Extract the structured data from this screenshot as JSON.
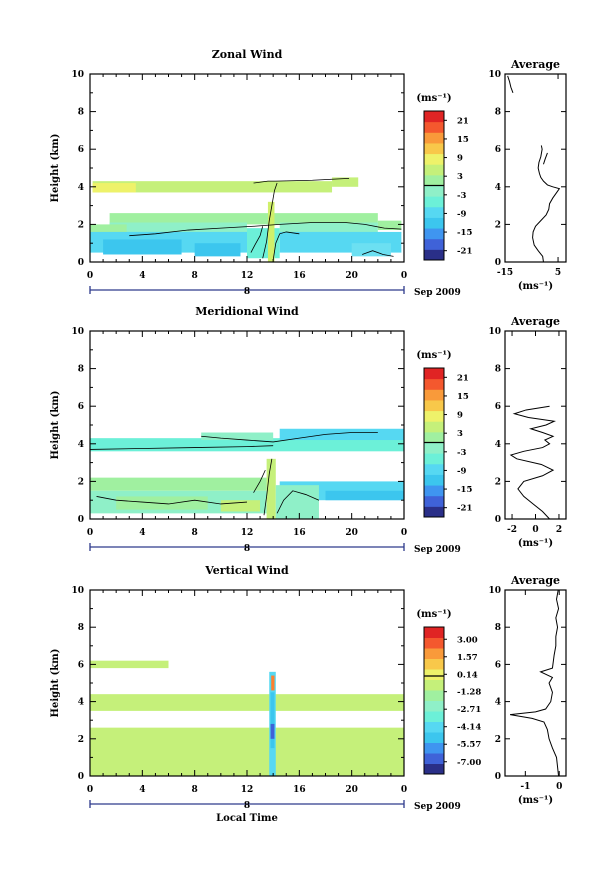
{
  "chart_data": [
    {
      "type": "heatmap",
      "title": "Zonal Wind",
      "ylabel": "Height (km)",
      "xlim": [
        0,
        24
      ],
      "ylim": [
        0,
        10
      ],
      "x_ticks": [
        "0",
        "4",
        "8",
        "12",
        "16",
        "20",
        "0"
      ],
      "y_ticks": [
        "0",
        "2",
        "4",
        "6",
        "8",
        "10"
      ],
      "day_label": "8",
      "date_label": "Sep 2009",
      "colorbar": {
        "unit": "(ms⁻¹)",
        "range": [
          -24,
          24
        ],
        "ticks": [
          "21",
          "15",
          "9",
          "3",
          "-3",
          "-9",
          "-15",
          "-21"
        ],
        "tick_values": [
          21,
          15,
          9,
          3,
          -3,
          -9,
          -15,
          -21
        ]
      },
      "average": {
        "title": "Average",
        "xlabel": "(ms⁻¹)",
        "xlim": [
          -15,
          8
        ],
        "x_ticks": [
          "-15",
          "5"
        ],
        "x_tick_values": [
          -15,
          5
        ],
        "y_ticks": [
          "0",
          "2",
          "4",
          "6",
          "8",
          "10"
        ],
        "profile_segments": [
          [
            [
              -0.5,
              0.0
            ],
            [
              -0.8,
              0.3
            ],
            [
              -2.5,
              0.6
            ],
            [
              -4.0,
              0.9
            ],
            [
              -4.6,
              1.3
            ],
            [
              -4.4,
              1.6
            ],
            [
              -3.5,
              1.9
            ],
            [
              -1.5,
              2.2
            ],
            [
              0.5,
              2.5
            ],
            [
              1.5,
              2.8
            ],
            [
              1.8,
              3.1
            ],
            [
              3.0,
              3.4
            ],
            [
              4.5,
              3.7
            ],
            [
              5.5,
              3.9
            ],
            [
              3.0,
              4.0
            ],
            [
              1.0,
              4.1
            ],
            [
              -0.5,
              4.3
            ],
            [
              -1.5,
              4.5
            ],
            [
              -2.0,
              4.7
            ],
            [
              -2.5,
              5.0
            ],
            [
              -2.2,
              5.3
            ],
            [
              -1.5,
              5.6
            ],
            [
              -1.0,
              6.0
            ],
            [
              -1.3,
              6.2
            ]
          ],
          [
            [
              -0.5,
              5.2
            ],
            [
              0.2,
              5.5
            ],
            [
              1.0,
              5.8
            ]
          ],
          [
            [
              -12.0,
              9.0
            ],
            [
              -12.8,
              9.3
            ],
            [
              -13.3,
              9.6
            ],
            [
              -14.0,
              9.9
            ]
          ]
        ]
      },
      "bands": [
        {
          "x0": 0.2,
          "x1": 18.5,
          "y0": 3.7,
          "y1": 4.3,
          "color": "#c5f07a"
        },
        {
          "x0": 0.2,
          "x1": 3.5,
          "y0": 3.7,
          "y1": 4.2,
          "color": "#eef26a"
        },
        {
          "x0": 18.5,
          "x1": 20.5,
          "y0": 4.0,
          "y1": 4.5,
          "color": "#c5f07a"
        },
        {
          "x0": 1.5,
          "x1": 22.0,
          "y0": 2.0,
          "y1": 2.6,
          "color": "#a0f0a0"
        },
        {
          "x0": 22.0,
          "x1": 23.8,
          "y0": 1.7,
          "y1": 2.2,
          "color": "#a0f0a0"
        },
        {
          "x0": 1.5,
          "x1": 12.0,
          "y0": 1.5,
          "y1": 2.1,
          "color": "#8ff0c8"
        },
        {
          "x0": 14.5,
          "x1": 22.0,
          "y0": 1.5,
          "y1": 2.1,
          "color": "#8ff0c8"
        },
        {
          "x0": 0.0,
          "x1": 2.8,
          "y0": 1.2,
          "y1": 2.0,
          "color": "#a0f0a0"
        },
        {
          "x0": 0.0,
          "x1": 12.3,
          "y0": 0.5,
          "y1": 1.6,
          "color": "#56d8f2"
        },
        {
          "x0": 14.5,
          "x1": 23.8,
          "y0": 0.5,
          "y1": 1.6,
          "color": "#56d8f2"
        },
        {
          "x0": 1.0,
          "x1": 7.0,
          "y0": 0.4,
          "y1": 1.2,
          "color": "#3cc6ee"
        },
        {
          "x0": 8.0,
          "x1": 11.5,
          "y0": 0.3,
          "y1": 1.0,
          "color": "#3cc6ee"
        },
        {
          "x0": 12.0,
          "x1": 14.5,
          "y0": 0.2,
          "y1": 1.8,
          "color": "#6cf0d8"
        },
        {
          "x0": 20.0,
          "x1": 23.0,
          "y0": 0.3,
          "y1": 1.0,
          "color": "#6ce0f2"
        },
        {
          "x0": 13.6,
          "x1": 14.1,
          "y0": 0.0,
          "y1": 3.2,
          "color": "#d0f06a"
        }
      ],
      "zero_contours": [
        [
          [
            12.5,
            4.2
          ],
          [
            13.6,
            4.3
          ],
          [
            14.2,
            4.3
          ],
          [
            17.0,
            4.35
          ],
          [
            19.8,
            4.45
          ]
        ],
        [
          [
            3.0,
            1.4
          ],
          [
            5.0,
            1.5
          ],
          [
            7.5,
            1.7
          ],
          [
            10.0,
            1.8
          ],
          [
            12.5,
            1.9
          ],
          [
            14.5,
            2.0
          ],
          [
            17.0,
            2.1
          ],
          [
            19.5,
            2.1
          ],
          [
            21.0,
            2.0
          ],
          [
            22.5,
            1.8
          ],
          [
            23.8,
            1.75
          ]
        ],
        [
          [
            13.2,
            0.2
          ],
          [
            13.5,
            1.1
          ],
          [
            13.7,
            2.2
          ],
          [
            13.9,
            3.0
          ],
          [
            14.1,
            3.8
          ],
          [
            14.3,
            4.2
          ]
        ],
        [
          [
            14.0,
            0.1
          ],
          [
            14.2,
            1.0
          ],
          [
            14.5,
            1.5
          ],
          [
            15.0,
            1.6
          ],
          [
            16.0,
            1.5
          ]
        ],
        [
          [
            12.3,
            0.5
          ],
          [
            12.6,
            0.9
          ],
          [
            13.0,
            1.4
          ],
          [
            13.2,
            1.9
          ]
        ],
        [
          [
            20.8,
            0.4
          ],
          [
            21.6,
            0.6
          ],
          [
            22.4,
            0.4
          ],
          [
            23.2,
            0.3
          ]
        ]
      ]
    },
    {
      "type": "heatmap",
      "title": "Meridional Wind",
      "ylabel": "Height (km)",
      "xlim": [
        0,
        24
      ],
      "ylim": [
        0,
        10
      ],
      "x_ticks": [
        "0",
        "4",
        "8",
        "12",
        "16",
        "20",
        "0"
      ],
      "y_ticks": [
        "0",
        "2",
        "4",
        "6",
        "8",
        "10"
      ],
      "day_label": "8",
      "date_label": "Sep 2009",
      "colorbar": {
        "unit": "(ms⁻¹)",
        "range": [
          -24,
          24
        ],
        "ticks": [
          "21",
          "15",
          "9",
          "3",
          "-3",
          "-9",
          "-15",
          "-21"
        ],
        "tick_values": [
          21,
          15,
          9,
          3,
          -3,
          -9,
          -15,
          -21
        ]
      },
      "average": {
        "title": "Average",
        "xlabel": "(ms⁻¹)",
        "xlim": [
          -2.6,
          2.6
        ],
        "x_ticks": [
          "-2",
          "0",
          "2"
        ],
        "x_tick_values": [
          -2,
          0,
          2
        ],
        "y_ticks": [
          "0",
          "2",
          "4",
          "6",
          "8",
          "10"
        ],
        "profile_segments": [
          [
            [
              1.2,
              0.0
            ],
            [
              0.6,
              0.4
            ],
            [
              -0.2,
              0.8
            ],
            [
              -1.0,
              1.2
            ],
            [
              -1.5,
              1.6
            ],
            [
              -1.0,
              2.0
            ],
            [
              0.6,
              2.3
            ],
            [
              1.5,
              2.6
            ],
            [
              0.5,
              2.9
            ],
            [
              -1.6,
              3.2
            ],
            [
              -2.1,
              3.4
            ],
            [
              -1.0,
              3.6
            ],
            [
              0.6,
              3.8
            ],
            [
              1.2,
              4.0
            ],
            [
              0.8,
              4.2
            ],
            [
              1.5,
              4.4
            ],
            [
              0.6,
              4.6
            ],
            [
              -0.4,
              4.8
            ],
            [
              0.9,
              5.0
            ],
            [
              1.6,
              5.2
            ],
            [
              -0.6,
              5.4
            ],
            [
              -1.8,
              5.6
            ],
            [
              -0.8,
              5.8
            ],
            [
              1.2,
              6.0
            ]
          ]
        ]
      },
      "bands": [
        {
          "x0": 0.0,
          "x1": 24.0,
          "y0": 3.6,
          "y1": 4.3,
          "color": "#6cf0d8"
        },
        {
          "x0": 14.5,
          "x1": 24.0,
          "y0": 4.2,
          "y1": 4.8,
          "color": "#56d8f2"
        },
        {
          "x0": 8.5,
          "x1": 14.0,
          "y0": 4.2,
          "y1": 4.6,
          "color": "#8ff0c8"
        },
        {
          "x0": 0.0,
          "x1": 13.5,
          "y0": 1.5,
          "y1": 2.2,
          "color": "#a0f0a0"
        },
        {
          "x0": 14.5,
          "x1": 24.0,
          "y0": 1.0,
          "y1": 2.0,
          "color": "#56d8f2"
        },
        {
          "x0": 18.0,
          "x1": 24.0,
          "y0": 1.0,
          "y1": 1.5,
          "color": "#3cc6ee"
        },
        {
          "x0": 0.0,
          "x1": 13.5,
          "y0": 0.3,
          "y1": 1.5,
          "color": "#8ff0c8"
        },
        {
          "x0": 2.0,
          "x1": 9.0,
          "y0": 0.5,
          "y1": 1.2,
          "color": "#a0f0a0"
        },
        {
          "x0": 10.0,
          "x1": 13.0,
          "y0": 0.4,
          "y1": 1.0,
          "color": "#c5f07a"
        },
        {
          "x0": 13.5,
          "x1": 14.2,
          "y0": 0.0,
          "y1": 3.2,
          "color": "#c5f07a"
        },
        {
          "x0": 14.2,
          "x1": 17.5,
          "y0": 0.0,
          "y1": 1.8,
          "color": "#8ff0c8"
        }
      ],
      "zero_contours": [
        [
          [
            0.0,
            3.7
          ],
          [
            4.0,
            3.75
          ],
          [
            8.0,
            3.8
          ],
          [
            12.0,
            3.85
          ],
          [
            14.0,
            3.9
          ]
        ],
        [
          [
            8.5,
            4.4
          ],
          [
            10.0,
            4.3
          ],
          [
            12.0,
            4.2
          ],
          [
            14.0,
            4.1
          ],
          [
            16.0,
            4.3
          ],
          [
            18.0,
            4.5
          ],
          [
            20.0,
            4.6
          ],
          [
            22.0,
            4.6
          ]
        ],
        [
          [
            0.5,
            1.2
          ],
          [
            2.0,
            1.0
          ],
          [
            4.0,
            0.9
          ],
          [
            6.0,
            0.8
          ],
          [
            8.0,
            1.0
          ],
          [
            10.0,
            0.8
          ],
          [
            12.0,
            0.9
          ]
        ],
        [
          [
            13.3,
            0.2
          ],
          [
            13.5,
            1.2
          ],
          [
            13.7,
            2.4
          ],
          [
            13.9,
            3.2
          ]
        ],
        [
          [
            14.3,
            0.3
          ],
          [
            14.8,
            1.0
          ],
          [
            15.5,
            1.5
          ],
          [
            16.5,
            1.3
          ],
          [
            17.5,
            1.0
          ]
        ],
        [
          [
            12.5,
            1.4
          ],
          [
            13.0,
            2.0
          ],
          [
            13.4,
            2.6
          ]
        ]
      ]
    },
    {
      "type": "heatmap",
      "title": "Vertical Wind",
      "xlabel": "Local Time",
      "ylabel": "Height (km)",
      "xlim": [
        0,
        24
      ],
      "ylim": [
        0,
        10
      ],
      "x_ticks": [
        "0",
        "4",
        "8",
        "12",
        "16",
        "20",
        "0"
      ],
      "y_ticks": [
        "0",
        "2",
        "4",
        "6",
        "8",
        "10"
      ],
      "day_label": "8",
      "date_label": "Sep 2009",
      "colorbar": {
        "unit": "(ms⁻¹)",
        "range": [
          -8,
          4
        ],
        "ticks": [
          "3.00",
          "1.57",
          "0.14",
          "-1.28",
          "-2.71",
          "-4.14",
          "-5.57",
          "-7.00"
        ],
        "tick_values": [
          3.0,
          1.57,
          0.14,
          -1.28,
          -2.71,
          -4.14,
          -5.57,
          -7.0
        ]
      },
      "average": {
        "title": "Average",
        "xlabel": "(ms⁻¹)",
        "xlim": [
          -1.6,
          0.2
        ],
        "x_ticks": [
          "-1",
          "0"
        ],
        "x_tick_values": [
          -1,
          0
        ],
        "y_ticks": [
          "0",
          "2",
          "4",
          "6",
          "8",
          "10"
        ],
        "profile_segments": [
          [
            [
              -0.02,
              0.0
            ],
            [
              -0.05,
              0.5
            ],
            [
              -0.08,
              1.0
            ],
            [
              -0.2,
              1.5
            ],
            [
              -0.3,
              2.0
            ],
            [
              -0.35,
              2.5
            ],
            [
              -0.45,
              2.9
            ],
            [
              -0.8,
              3.1
            ],
            [
              -1.45,
              3.3
            ],
            [
              -0.7,
              3.45
            ],
            [
              -0.4,
              3.6
            ],
            [
              -0.25,
              4.0
            ],
            [
              -0.2,
              4.5
            ],
            [
              -0.3,
              5.0
            ],
            [
              -0.2,
              5.3
            ],
            [
              -0.55,
              5.6
            ],
            [
              -0.2,
              5.8
            ],
            [
              -0.15,
              6.5
            ],
            [
              -0.1,
              7.0
            ],
            [
              -0.1,
              7.5
            ],
            [
              -0.05,
              8.0
            ],
            [
              -0.1,
              8.5
            ],
            [
              -0.02,
              9.0
            ],
            [
              -0.08,
              9.5
            ],
            [
              -0.03,
              10.0
            ]
          ]
        ]
      },
      "bands": [
        {
          "x0": 0.0,
          "x1": 24.0,
          "y0": 3.5,
          "y1": 4.4,
          "color": "#c5f07a"
        },
        {
          "x0": 0.0,
          "x1": 24.0,
          "y0": 0.0,
          "y1": 2.6,
          "color": "#c5f07a"
        },
        {
          "x0": 0.0,
          "x1": 6.0,
          "y0": 5.8,
          "y1": 6.2,
          "color": "#c5f07a"
        },
        {
          "x0": 13.7,
          "x1": 14.2,
          "y0": 0.0,
          "y1": 5.6,
          "color": "#56d8f2"
        },
        {
          "x0": 13.8,
          "x1": 14.1,
          "y0": 1.5,
          "y1": 4.5,
          "color": "#3cc6ee"
        },
        {
          "x0": 13.85,
          "x1": 14.1,
          "y0": 4.6,
          "y1": 5.4,
          "color": "#ff8030"
        },
        {
          "x0": 13.8,
          "x1": 14.1,
          "y0": 2.0,
          "y1": 2.8,
          "color": "#3f62d8"
        }
      ],
      "zero_contours": []
    }
  ]
}
